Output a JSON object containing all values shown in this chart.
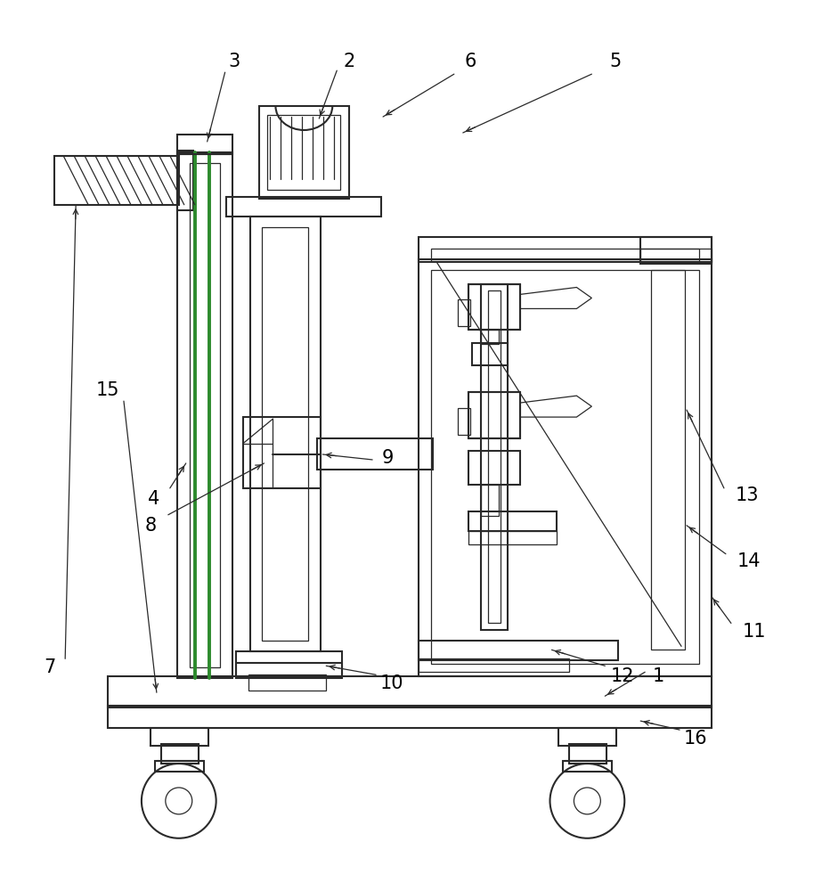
{
  "bg": "#ffffff",
  "lc": "#2a2a2a",
  "gc": "#2d8a2d",
  "lw": 1.5,
  "tlw": 0.9,
  "fw": 9.14,
  "fh": 10.0,
  "dpi": 100
}
